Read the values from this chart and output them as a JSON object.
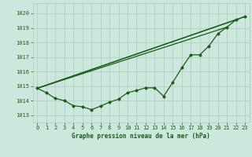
{
  "title": "Graphe pression niveau de la mer (hPa)",
  "background_color": "#cce8dc",
  "grid_color": "#aaccbb",
  "line_color": "#1a5c1a",
  "xlim": [
    -0.5,
    23.5
  ],
  "ylim": [
    1012.5,
    1020.7
  ],
  "yticks": [
    1013,
    1014,
    1015,
    1016,
    1017,
    1018,
    1019,
    1020
  ],
  "xticks": [
    0,
    1,
    2,
    3,
    4,
    5,
    6,
    7,
    8,
    9,
    10,
    11,
    12,
    13,
    14,
    15,
    16,
    17,
    18,
    19,
    20,
    21,
    22,
    23
  ],
  "main_line_x": [
    0,
    1,
    2,
    3,
    4,
    5,
    6,
    7,
    8,
    9,
    10,
    11,
    12,
    13,
    14,
    15,
    16,
    17,
    18,
    19,
    20,
    21,
    22,
    23
  ],
  "main_line_y": [
    1014.85,
    1014.55,
    1014.15,
    1014.0,
    1013.65,
    1013.58,
    1013.38,
    1013.62,
    1013.9,
    1014.1,
    1014.55,
    1014.7,
    1014.88,
    1014.88,
    1014.3,
    1015.25,
    1016.25,
    1017.15,
    1017.15,
    1017.75,
    1018.6,
    1019.05,
    1019.55,
    1019.78
  ],
  "straight_line1_x": [
    0,
    23
  ],
  "straight_line1_y": [
    1014.85,
    1019.78
  ],
  "straight_line2_x": [
    0,
    22
  ],
  "straight_line2_y": [
    1014.85,
    1019.55
  ],
  "straight_line3_x": [
    0,
    21
  ],
  "straight_line3_y": [
    1014.85,
    1019.05
  ],
  "xlabel_fontsize": 5.5,
  "tick_fontsize": 5.0
}
